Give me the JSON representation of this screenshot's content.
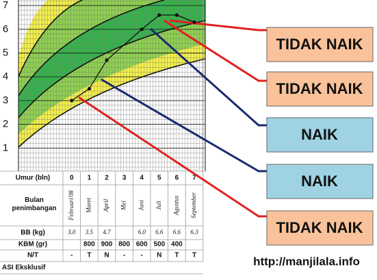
{
  "chart": {
    "y_labels": [
      1,
      2,
      3,
      4,
      5,
      6,
      7
    ]
  },
  "table": {
    "row_headers": [
      "Umur (bln)",
      "Bulan penimbangan",
      "BB (kg)",
      "KBM (gr)",
      "N/T",
      "ASI Eksklusif"
    ],
    "months": [
      0,
      1,
      2,
      3,
      4,
      5,
      6,
      7
    ],
    "month_names": [
      "Februari'08",
      "Maret",
      "April",
      "Mei",
      "Juni",
      "Juli",
      "Agustus",
      "September"
    ],
    "bb": [
      "3.0",
      "3.5",
      "4.7",
      null,
      "6.0",
      "6.6",
      "6.6",
      "6.3"
    ],
    "kbm": [
      null,
      "800",
      "900",
      "800",
      "600",
      "500",
      "400",
      null
    ],
    "nt": [
      "-",
      "T",
      "N",
      "-",
      "-",
      "N",
      "T",
      "T"
    ]
  },
  "labels": [
    "TIDAK NAIK",
    "TIDAK NAIK",
    "NAIK",
    "NAIK",
    "TIDAK NAIK"
  ],
  "source": "http://manjilala.info"
}
